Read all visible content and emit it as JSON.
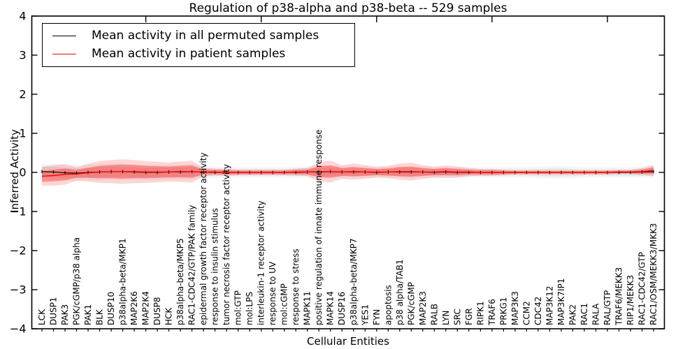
{
  "chart_data": {
    "type": "line",
    "title": "Regulation of p38-alpha and p38-beta -- 529 samples",
    "xlabel": "Cellular Entities",
    "ylabel": "Inferred Activity",
    "ylim": [
      -4,
      4
    ],
    "yticks": [
      4,
      3,
      2,
      1,
      0,
      -1,
      -2,
      -3,
      -4
    ],
    "grid": false,
    "legend": {
      "position": "upper left",
      "entries": [
        {
          "label": "Mean activity in all permuted samples",
          "color": "#000000"
        },
        {
          "label": "Mean activity in patient samples",
          "color": "#ff0000"
        }
      ]
    },
    "colors": {
      "permuted_line": "#000000",
      "patient_line": "#ff0000",
      "patient_band": "#ff0000",
      "permuted_band": "#999999"
    },
    "top_tick_indices": [
      9,
      19,
      29,
      39,
      49
    ],
    "categories": [
      "LCK",
      "DUSP1",
      "PAK3",
      "PGK/cGMP/p38 alpha",
      "PAK1",
      "BLK",
      "DUSP10",
      "p38alpha-beta/MKP1",
      "MAP2K6",
      "MAP2K4",
      "DUSP8",
      "HCK",
      "p38alpha-beta/MKP5",
      "RAC1-CDC42/GTP/PAK family",
      "epidermal growth factor receptor activity",
      "response to insulin stimulus",
      "tumor necrosis factor receptor activity",
      "mol:GTP",
      "mol:LPS",
      "interleukin-1 receptor activity",
      "response to UV",
      "mol:cGMP",
      "response to stress",
      "MAPK11",
      "positive regulation of innate immune response",
      "MAPK14",
      "DUSP16",
      "p38alpha-beta/MKP7",
      "YES1",
      "FYN",
      "apoptosis",
      "p38 alpha/TAB1",
      "PGK/cGMP",
      "MAP2K3",
      "RALB",
      "LYN",
      "SRC",
      "FGR",
      "RIPK1",
      "TRAF6",
      "PRKG1",
      "MAP3K3",
      "CCM2",
      "CDC42",
      "MAP3K12",
      "MAP3K7IP1",
      "PAK2",
      "RAC1",
      "RALA",
      "RAL/GTP",
      "TRAF6/MEKK3",
      "RIP1/MEKK3",
      "RAC1-CDC42/GTP",
      "RAC1/OSM/MEKK3/MKK3"
    ],
    "series": [
      {
        "name": "Mean activity in all permuted samples",
        "values": [
          0.02,
          0.01,
          -0.01,
          -0.02,
          0.0,
          0.01,
          0.02,
          0.02,
          0.01,
          0.0,
          0.0,
          0.01,
          0.01,
          0.02,
          0.01,
          0.0,
          0.0,
          0.0,
          0.0,
          0.0,
          0.0,
          0.0,
          0.0,
          0.01,
          0.01,
          0.02,
          0.01,
          0.01,
          0.01,
          0.0,
          0.01,
          0.01,
          0.01,
          0.01,
          0.0,
          0.01,
          0.0,
          0.0,
          0.0,
          0.0,
          0.0,
          0.0,
          0.0,
          0.0,
          0.0,
          0.0,
          0.0,
          0.0,
          0.0,
          0.0,
          0.0,
          0.0,
          0.01,
          0.02
        ]
      },
      {
        "name": "Mean activity in patient samples",
        "values": [
          -0.1,
          -0.08,
          -0.05,
          -0.04,
          -0.01,
          0.01,
          0.02,
          0.02,
          0.02,
          0.01,
          0.01,
          0.01,
          0.02,
          0.02,
          0.01,
          0.01,
          0.0,
          0.0,
          0.0,
          0.0,
          0.0,
          0.0,
          0.01,
          0.01,
          0.02,
          0.02,
          0.01,
          0.02,
          0.01,
          0.01,
          0.01,
          0.02,
          0.02,
          0.01,
          0.01,
          0.02,
          0.01,
          0.01,
          0.0,
          0.0,
          0.0,
          0.0,
          0.0,
          0.0,
          0.0,
          0.0,
          0.0,
          0.0,
          0.0,
          0.0,
          0.01,
          0.01,
          0.02,
          0.05
        ]
      }
    ],
    "bands": {
      "patient_std": [
        0.14,
        0.15,
        0.15,
        0.1,
        0.13,
        0.16,
        0.17,
        0.18,
        0.17,
        0.16,
        0.15,
        0.14,
        0.15,
        0.16,
        0.06,
        0.05,
        0.05,
        0.04,
        0.04,
        0.04,
        0.04,
        0.04,
        0.05,
        0.06,
        0.14,
        0.16,
        0.1,
        0.12,
        0.1,
        0.08,
        0.09,
        0.12,
        0.13,
        0.1,
        0.08,
        0.09,
        0.08,
        0.06,
        0.05,
        0.05,
        0.04,
        0.03,
        0.03,
        0.03,
        0.03,
        0.03,
        0.03,
        0.03,
        0.03,
        0.03,
        0.03,
        0.03,
        0.05,
        0.08
      ],
      "permuted_std": [
        0.12,
        0.13,
        0.13,
        0.12,
        0.12,
        0.13,
        0.13,
        0.13,
        0.12,
        0.12,
        0.12,
        0.12,
        0.12,
        0.12,
        0.1,
        0.09,
        0.09,
        0.08,
        0.08,
        0.08,
        0.08,
        0.08,
        0.09,
        0.09,
        0.1,
        0.1,
        0.09,
        0.09,
        0.09,
        0.08,
        0.09,
        0.09,
        0.1,
        0.09,
        0.09,
        0.09,
        0.09,
        0.08,
        0.08,
        0.08,
        0.08,
        0.08,
        0.08,
        0.09,
        0.1,
        0.1,
        0.09,
        0.08,
        0.08,
        0.08,
        0.08,
        0.08,
        0.09,
        0.1
      ]
    }
  }
}
